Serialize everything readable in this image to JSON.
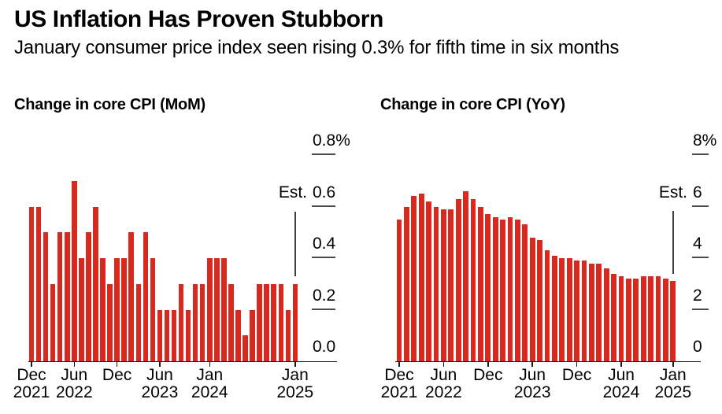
{
  "header": {
    "title": "US Inflation Has Proven Stubborn",
    "subtitle": "January consumer price index seen rising 0.3% for fifth time in six months"
  },
  "colors": {
    "bar": "#d8291e",
    "axis": "#1a1a1a",
    "tick_dash": "#4a4a4a",
    "est_line": "#3f3f3f",
    "text": "#000000",
    "background": "#ffffff"
  },
  "chart_data": [
    {
      "type": "bar",
      "title": "Change in core CPI (MoM)",
      "ylabel": "",
      "xlabel": "",
      "ylim": [
        0,
        0.8
      ],
      "grid": false,
      "legend_position": "none",
      "est_label": "Est.",
      "est_category": "Jan 2025",
      "categories": [
        "Dec 2021",
        "Jan 2022",
        "Feb 2022",
        "Mar 2022",
        "Apr 2022",
        "May 2022",
        "Jun 2022",
        "Jul 2022",
        "Aug 2022",
        "Sep 2022",
        "Oct 2022",
        "Nov 2022",
        "Dec 2022",
        "Jan 2023",
        "Feb 2023",
        "Mar 2023",
        "Apr 2023",
        "May 2023",
        "Jun 2023",
        "Jul 2023",
        "Aug 2023",
        "Sep 2023",
        "Oct 2023",
        "Nov 2023",
        "Dec 2023",
        "Jan 2024",
        "Feb 2024",
        "Mar 2024",
        "Apr 2024",
        "May 2024",
        "Jun 2024",
        "Jul 2024",
        "Aug 2024",
        "Sep 2024",
        "Oct 2024",
        "Nov 2024",
        "Dec 2024",
        "Jan 2025"
      ],
      "values": [
        0.6,
        0.6,
        0.5,
        0.3,
        0.5,
        0.5,
        0.7,
        0.4,
        0.5,
        0.6,
        0.4,
        0.3,
        0.4,
        0.4,
        0.5,
        0.3,
        0.5,
        0.4,
        0.2,
        0.2,
        0.2,
        0.3,
        0.2,
        0.3,
        0.3,
        0.4,
        0.4,
        0.4,
        0.3,
        0.2,
        0.1,
        0.2,
        0.3,
        0.3,
        0.3,
        0.3,
        0.2,
        0.3
      ],
      "yticks": [
        {
          "value": 0.0,
          "label": "0.0"
        },
        {
          "value": 0.2,
          "label": "0.2"
        },
        {
          "value": 0.4,
          "label": "0.4"
        },
        {
          "value": 0.6,
          "label": "0.6"
        },
        {
          "value": 0.8,
          "label": "0.8%"
        }
      ],
      "xticks": [
        {
          "index": 0,
          "line1": "Dec",
          "line2": "2021"
        },
        {
          "index": 6,
          "line1": "Jun",
          "line2": "2022"
        },
        {
          "index": 12,
          "line1": "Dec",
          "line2": ""
        },
        {
          "index": 18,
          "line1": "Jun",
          "line2": "2023"
        },
        {
          "index": 25,
          "line1": "Jan",
          "line2": "2024"
        },
        {
          "index": 37,
          "line1": "Jan",
          "line2": "2025"
        }
      ]
    },
    {
      "type": "bar",
      "title": "Change in core CPI (YoY)",
      "ylabel": "",
      "xlabel": "",
      "ylim": [
        0,
        8
      ],
      "grid": false,
      "legend_position": "none",
      "est_label": "Est.",
      "est_category": "Jan 2025",
      "categories": [
        "Dec 2021",
        "Jan 2022",
        "Feb 2022",
        "Mar 2022",
        "Apr 2022",
        "May 2022",
        "Jun 2022",
        "Jul 2022",
        "Aug 2022",
        "Sep 2022",
        "Oct 2022",
        "Nov 2022",
        "Dec 2022",
        "Jan 2023",
        "Feb 2023",
        "Mar 2023",
        "Apr 2023",
        "May 2023",
        "Jun 2023",
        "Jul 2023",
        "Aug 2023",
        "Sep 2023",
        "Oct 2023",
        "Nov 2023",
        "Dec 2023",
        "Jan 2024",
        "Feb 2024",
        "Mar 2024",
        "Apr 2024",
        "May 2024",
        "Jun 2024",
        "Jul 2024",
        "Aug 2024",
        "Sep 2024",
        "Oct 2024",
        "Nov 2024",
        "Dec 2024",
        "Jan 2025"
      ],
      "values": [
        5.5,
        6.0,
        6.4,
        6.5,
        6.2,
        6.0,
        5.9,
        5.9,
        6.3,
        6.6,
        6.3,
        6.0,
        5.7,
        5.6,
        5.5,
        5.6,
        5.5,
        5.3,
        4.8,
        4.7,
        4.3,
        4.1,
        4.0,
        4.0,
        3.9,
        3.9,
        3.8,
        3.8,
        3.6,
        3.4,
        3.3,
        3.2,
        3.2,
        3.3,
        3.3,
        3.3,
        3.2,
        3.1
      ],
      "yticks": [
        {
          "value": 0,
          "label": "0"
        },
        {
          "value": 2,
          "label": "2"
        },
        {
          "value": 4,
          "label": "4"
        },
        {
          "value": 6,
          "label": "6"
        },
        {
          "value": 8,
          "label": "8%"
        }
      ],
      "xticks": [
        {
          "index": 0,
          "line1": "Dec",
          "line2": "2021"
        },
        {
          "index": 6,
          "line1": "Jun",
          "line2": "2022"
        },
        {
          "index": 12,
          "line1": "Dec",
          "line2": ""
        },
        {
          "index": 18,
          "line1": "Jun",
          "line2": "2023"
        },
        {
          "index": 24,
          "line1": "Dec",
          "line2": ""
        },
        {
          "index": 30,
          "line1": "Jun",
          "line2": "2024"
        },
        {
          "index": 37,
          "line1": "Jan",
          "line2": "2025"
        }
      ]
    }
  ]
}
